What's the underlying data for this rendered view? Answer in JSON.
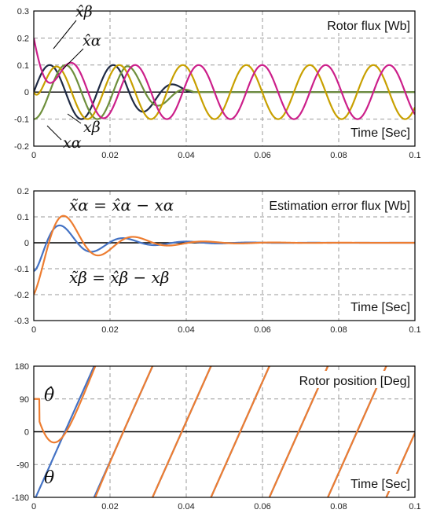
{
  "chart_data": [
    {
      "type": "line",
      "title": "Rotor flux [Wb]",
      "xlabel": "Time [Sec]",
      "ylabel": "",
      "xlim": [
        0,
        0.1
      ],
      "ylim": [
        -0.2,
        0.3
      ],
      "x_ticks": [
        0,
        0.02,
        0.04,
        0.06,
        0.08,
        0.1
      ],
      "x_tick_labels": [
        "0",
        "0.02",
        "0.04",
        "0.06",
        "0.08",
        "0.1"
      ],
      "y_ticks": [
        -0.2,
        -0.1,
        0,
        0.1,
        0.2,
        0.3
      ],
      "y_tick_labels": [
        "-0.2",
        "-0.1",
        "0",
        "0.1",
        "0.2",
        "0.3"
      ],
      "grid": true,
      "series": [
        {
          "name": "x_alpha",
          "color": "#1f2a44",
          "shape": "damped_sine",
          "amplitude": 0.1,
          "frequency_hz": 60,
          "start": 0.0,
          "phase_deg": 0,
          "fade_end": 0.042
        },
        {
          "name": "x_beta",
          "color": "#6e8f3c",
          "shape": "damped_sine",
          "amplitude": 0.1,
          "frequency_hz": 60,
          "start": 0.0,
          "phase_deg": -90,
          "fade_end": 0.042
        },
        {
          "name": "x_hat_alpha",
          "color": "#c8a000",
          "shape": "converging_sine",
          "amplitude": 0.1,
          "frequency_hz": 60,
          "start": 0.0,
          "phase_deg": 0
        },
        {
          "name": "x_hat_beta",
          "color": "#cc1f8a",
          "shape": "converging_sine",
          "amplitude": 0.1,
          "frequency_hz": 60,
          "start": 0.2,
          "phase_deg": -90
        }
      ],
      "annotations": [
        {
          "text": "x̂β",
          "target": "x_hat_beta"
        },
        {
          "text": "x̂α",
          "target": "x_hat_alpha"
        },
        {
          "text": "xβ",
          "target": "x_beta"
        },
        {
          "text": "xα",
          "target": "x_alpha"
        }
      ]
    },
    {
      "type": "line",
      "title": "Estimation error flux [Wb]",
      "xlabel": "Time [Sec]",
      "ylabel": "",
      "xlim": [
        0,
        0.1
      ],
      "ylim": [
        -0.3,
        0.2
      ],
      "x_ticks": [
        0,
        0.02,
        0.04,
        0.06,
        0.08,
        0.1
      ],
      "x_tick_labels": [
        "0",
        "0.02",
        "0.04",
        "0.06",
        "0.08",
        "0.1"
      ],
      "y_ticks": [
        -0.3,
        -0.2,
        -0.1,
        0,
        0.1,
        0.2
      ],
      "y_tick_labels": [
        "-0.3",
        "-0.2",
        "-0.1",
        "0",
        "0.1",
        "0.2"
      ],
      "grid": true,
      "series": [
        {
          "name": "x~alpha",
          "color": "#4472c4",
          "shape": "damped_error",
          "peak": 0.105,
          "t_peak": 0.009,
          "decay": 0.012,
          "frequency_hz": 60
        },
        {
          "name": "x~beta",
          "color": "#ed7d31",
          "shape": "damped_error",
          "initial": -0.2,
          "peak": 0.085,
          "t_peak": 0.013,
          "decay": 0.012,
          "frequency_hz": 60
        }
      ],
      "annotations": [
        {
          "text": "x̃α = x̂α − xα"
        },
        {
          "text": "x̃β = x̂β − xβ"
        }
      ]
    },
    {
      "type": "line",
      "title": "Rotor position [Deg]",
      "xlabel": "Time [Sec]",
      "ylabel": "",
      "xlim": [
        0,
        0.1
      ],
      "ylim": [
        -180,
        180
      ],
      "x_ticks": [
        0,
        0.02,
        0.04,
        0.06,
        0.08,
        0.1
      ],
      "x_tick_labels": [
        "0",
        "0.02",
        "0.04",
        "0.06",
        "0.08",
        "0.1"
      ],
      "y_ticks": [
        -180,
        -90,
        0,
        90,
        180
      ],
      "y_tick_labels": [
        "-180",
        "-90",
        "0",
        "90",
        "180"
      ],
      "grid": true,
      "series": [
        {
          "name": "theta",
          "color": "#4472c4",
          "shape": "sawtooth",
          "period": 0.01533,
          "phase_offset": 0.0005
        },
        {
          "name": "theta_hat",
          "color": "#ed7d31",
          "shape": "sawtooth_estimate",
          "period": 0.01533,
          "initial": 90,
          "dip": 18,
          "t_dip": 0.004
        }
      ],
      "annotations": [
        {
          "text": "θ̂",
          "target": "theta_hat"
        },
        {
          "text": "θ",
          "target": "theta"
        }
      ]
    }
  ]
}
